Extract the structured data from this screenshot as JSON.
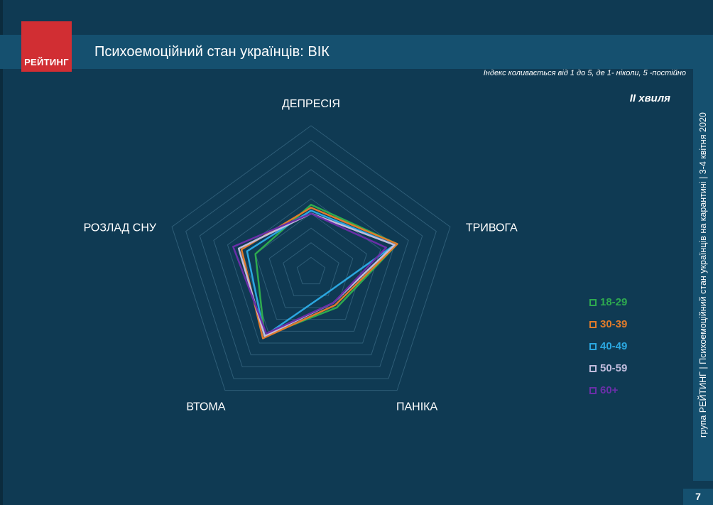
{
  "header": {
    "logo_text": "РЕЙТИНГ",
    "title": "Психоемоційний стан українців: ВІК",
    "index_note": "Індекс коливається від 1 до 5, де 1- ніколи, 5 -постійно",
    "wave": "ІІ хвиля"
  },
  "side_text": "група РЕЙТИНГ  |  Психоемоційний стан українців на карантині  |  3-4 квітня 2020",
  "page_number": "7",
  "chart_data": {
    "type": "radar",
    "categories": [
      "ДЕПРЕСІЯ",
      "ТРИВОГА",
      "ПАНІКА",
      "ВТОМА",
      "РОЗЛАД СНУ"
    ],
    "rlim": [
      0,
      5
    ],
    "grid_levels": 10,
    "grid": true,
    "legend_position": "right",
    "series": [
      {
        "name": "18-29",
        "color": "#2eaa4f",
        "values": [
          2.3,
          3.1,
          1.5,
          2.7,
          2.0
        ]
      },
      {
        "name": "30-39",
        "color": "#e07b2b",
        "values": [
          2.2,
          3.1,
          1.4,
          2.8,
          2.5
        ]
      },
      {
        "name": "40-49",
        "color": "#2ba7e0",
        "values": [
          2.1,
          3.0,
          0.9,
          2.7,
          2.3
        ]
      },
      {
        "name": "50-59",
        "color": "#c0bcdc",
        "values": [
          2.0,
          3.0,
          1.3,
          2.7,
          2.6
        ]
      },
      {
        "name": "60+",
        "color": "#6a2fa8",
        "values": [
          2.0,
          2.7,
          1.3,
          2.6,
          2.8
        ]
      }
    ]
  }
}
